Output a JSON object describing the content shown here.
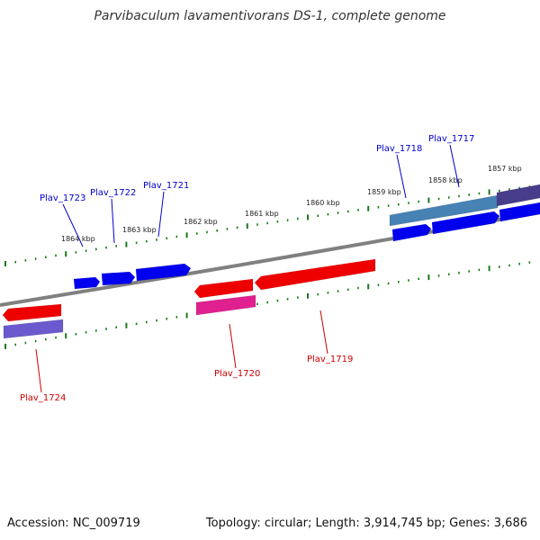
{
  "title": "Parvibaculum lavamentivorans DS-1, complete genome",
  "footer": {
    "accession": "Accession: NC_009719",
    "summary": "Topology: circular; Length: 3,914,745 bp; Genes: 3,686"
  },
  "colors": {
    "backbone": "#808080",
    "tick": "#1a7a1a",
    "forward_gene": "#0000ee",
    "reverse_gene": "#ee0000",
    "forward_label": "#0000cc",
    "reverse_label": "#cc0000",
    "cds_steelblue": "#4682b4",
    "cds_slateblue": "#6a5acd",
    "cds_darkslate": "#483d8b",
    "cds_magenta": "#e0208f"
  },
  "scale_labels": [
    "1864 kbp",
    "1863 kbp",
    "1862 kbp",
    "1861 kbp",
    "1860 kbp",
    "1859 kbp",
    "1858 kbp",
    "1857 kbp"
  ],
  "genes": [
    {
      "name": "Plav_1723",
      "strand": "forward"
    },
    {
      "name": "Plav_1722",
      "strand": "forward"
    },
    {
      "name": "Plav_1721",
      "strand": "forward"
    },
    {
      "name": "Plav_1718",
      "strand": "forward"
    },
    {
      "name": "Plav_1717",
      "strand": "forward"
    },
    {
      "name": "Plav_1724",
      "strand": "reverse"
    },
    {
      "name": "Plav_1720",
      "strand": "reverse"
    },
    {
      "name": "Plav_1719",
      "strand": "reverse"
    }
  ]
}
